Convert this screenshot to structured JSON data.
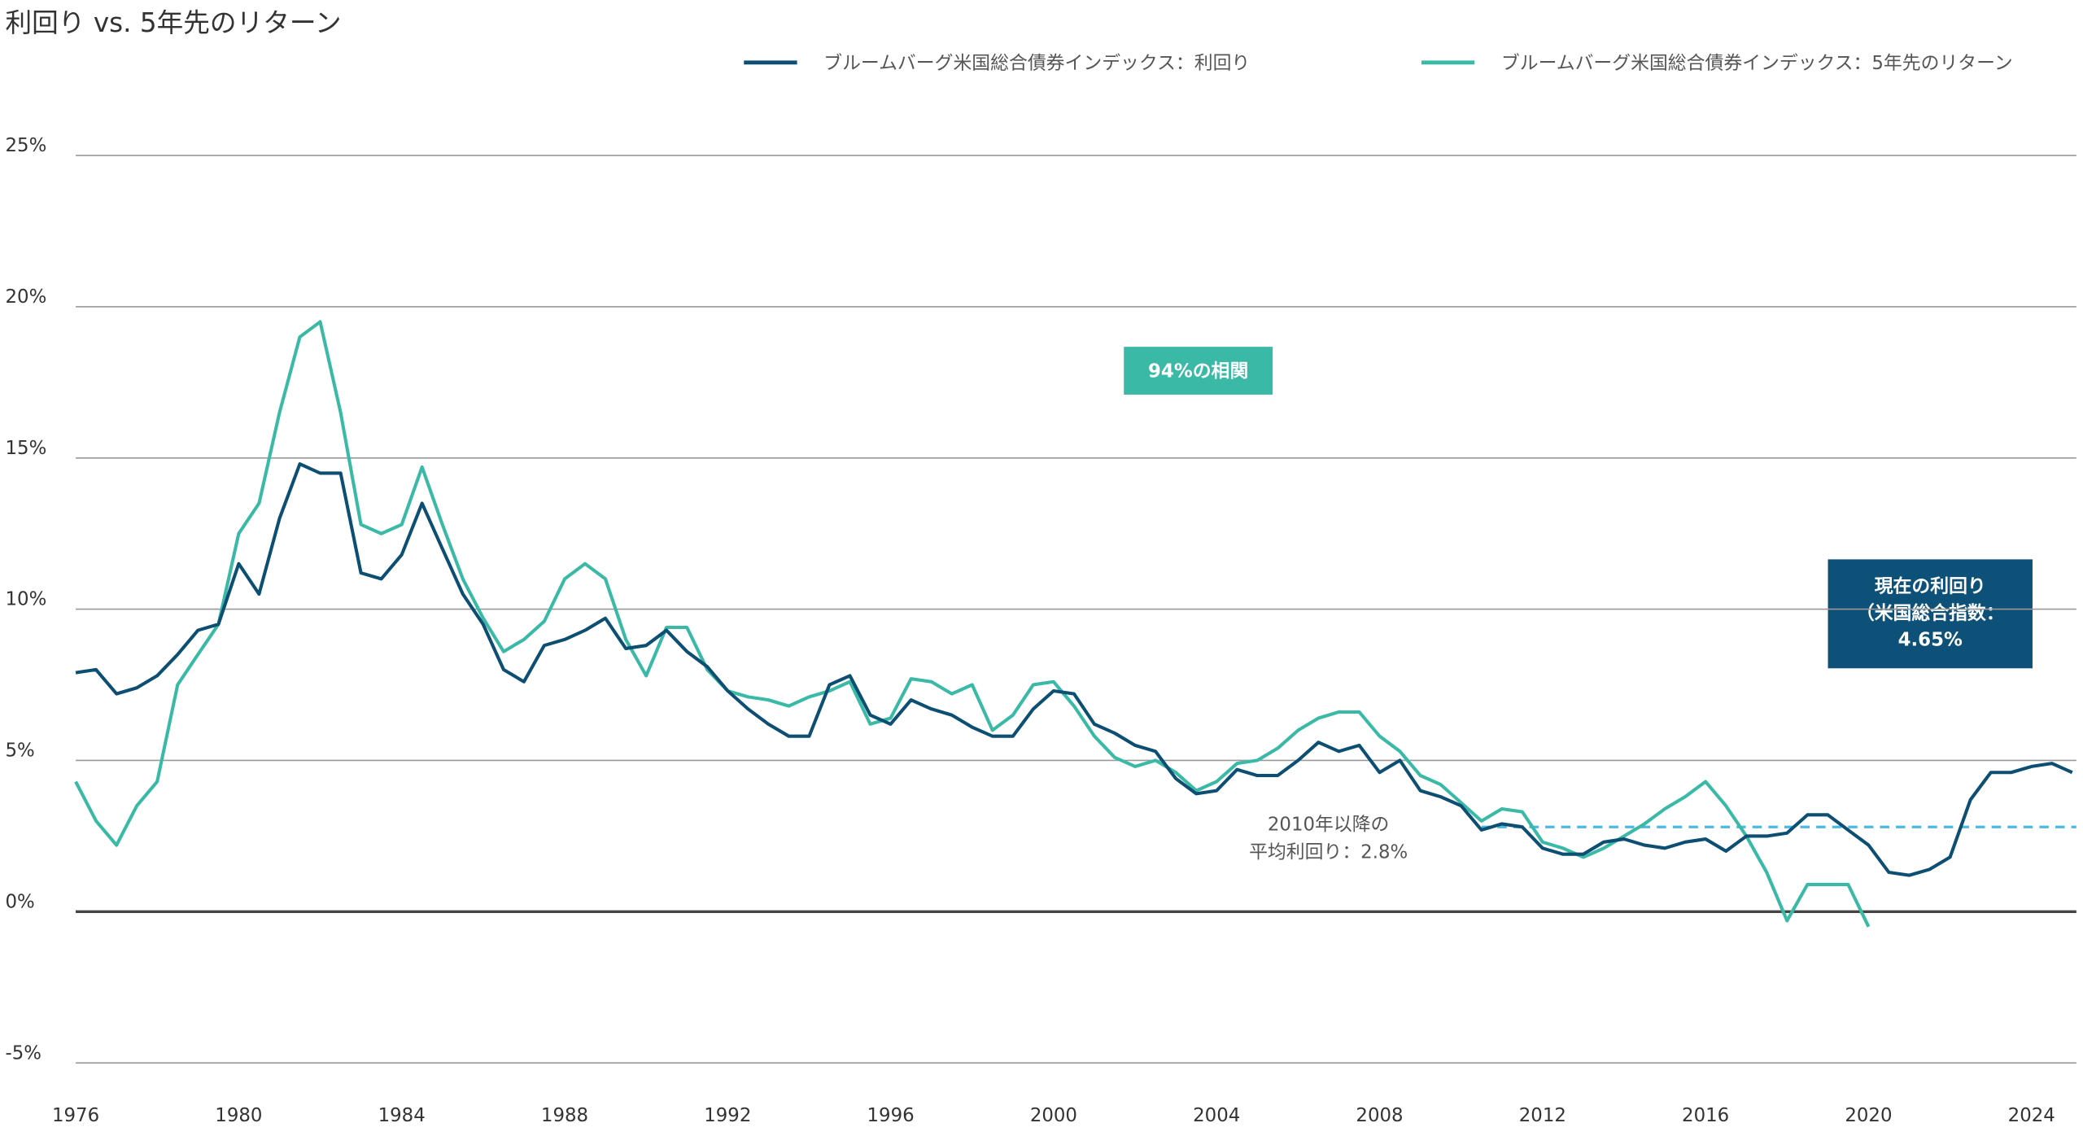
{
  "chart_data": {
    "type": "line",
    "title": "利回り vs. 5年先のリターン",
    "x": [
      1976,
      1976.5,
      1977,
      1977.5,
      1978,
      1978.5,
      1979,
      1979.5,
      1980,
      1980.5,
      1981,
      1981.5,
      1982,
      1982.5,
      1983,
      1983.5,
      1984,
      1984.5,
      1985,
      1985.5,
      1986,
      1986.5,
      1987,
      1987.5,
      1988,
      1988.5,
      1989,
      1989.5,
      1990,
      1990.5,
      1991,
      1991.5,
      1992,
      1992.5,
      1993,
      1993.5,
      1994,
      1994.5,
      1995,
      1995.5,
      1996,
      1996.5,
      1997,
      1997.5,
      1998,
      1998.5,
      1999,
      1999.5,
      2000,
      2000.5,
      2001,
      2001.5,
      2002,
      2002.5,
      2003,
      2003.5,
      2004,
      2004.5,
      2005,
      2005.5,
      2006,
      2006.5,
      2007,
      2007.5,
      2008,
      2008.5,
      2009,
      2009.5,
      2010,
      2010.5,
      2011,
      2011.5,
      2012,
      2012.5,
      2013,
      2013.5,
      2014,
      2014.5,
      2015,
      2015.5,
      2016,
      2016.5,
      2017,
      2017.5,
      2018,
      2018.5,
      2019,
      2019.5,
      2020,
      2020.5,
      2021,
      2021.5,
      2022,
      2022.5,
      2023,
      2023.5,
      2024,
      2024.5,
      2025
    ],
    "series": [
      {
        "name": "ブルームバーグ米国総合債券インデックス：利回り",
        "color": "#0d4f73",
        "values": [
          7.9,
          8.0,
          7.2,
          7.4,
          7.8,
          8.5,
          9.3,
          9.5,
          11.5,
          10.5,
          13.0,
          14.8,
          14.5,
          14.5,
          11.2,
          11.0,
          11.8,
          13.5,
          12.0,
          10.5,
          9.5,
          8.0,
          7.6,
          8.8,
          9.0,
          9.3,
          9.7,
          8.7,
          8.8,
          9.3,
          8.6,
          8.1,
          7.3,
          6.7,
          6.2,
          5.8,
          5.8,
          7.5,
          7.8,
          6.5,
          6.2,
          7.0,
          6.7,
          6.5,
          6.1,
          5.8,
          5.8,
          6.7,
          7.3,
          7.2,
          6.2,
          5.9,
          5.5,
          5.3,
          4.4,
          3.9,
          4.0,
          4.7,
          4.5,
          4.5,
          5.0,
          5.6,
          5.3,
          5.5,
          4.6,
          5.0,
          4.0,
          3.8,
          3.5,
          2.7,
          2.9,
          2.8,
          2.1,
          1.9,
          1.9,
          2.3,
          2.4,
          2.2,
          2.1,
          2.3,
          2.4,
          2.0,
          2.5,
          2.5,
          2.6,
          3.2,
          3.2,
          2.7,
          2.2,
          1.3,
          1.2,
          1.4,
          1.8,
          3.7,
          4.6,
          4.6,
          4.8,
          4.9,
          4.6
        ]
      },
      {
        "name": "ブルームバーグ米国総合債券インデックス：5年先のリターン",
        "color": "#3ab9a7",
        "values": [
          4.3,
          3.0,
          2.2,
          3.5,
          4.3,
          7.5,
          8.5,
          9.5,
          12.5,
          13.5,
          16.5,
          19.0,
          19.5,
          16.5,
          12.8,
          12.5,
          12.8,
          14.7,
          12.8,
          11.0,
          9.7,
          8.6,
          9.0,
          9.6,
          11.0,
          11.5,
          11.0,
          9.0,
          7.8,
          9.4,
          9.4,
          8.0,
          7.3,
          7.1,
          7.0,
          6.8,
          7.1,
          7.3,
          7.6,
          6.2,
          6.4,
          7.7,
          7.6,
          7.2,
          7.5,
          6.0,
          6.5,
          7.5,
          7.6,
          6.8,
          5.8,
          5.1,
          4.8,
          5.0,
          4.6,
          4.0,
          4.3,
          4.9,
          5.0,
          5.4,
          6.0,
          6.4,
          6.6,
          6.6,
          5.8,
          5.3,
          4.5,
          4.2,
          3.6,
          3.0,
          3.4,
          3.3,
          2.3,
          2.1,
          1.8,
          2.1,
          2.5,
          2.9,
          3.4,
          3.8,
          4.3,
          3.5,
          2.5,
          1.3,
          -0.3,
          0.9,
          0.9,
          0.9,
          -0.5,
          null,
          null,
          null,
          null,
          null,
          null,
          null,
          null,
          null,
          null
        ]
      }
    ],
    "xlim": [
      1976,
      2025.1
    ],
    "xticks": [
      1976,
      1980,
      1984,
      1988,
      1992,
      1996,
      2000,
      2004,
      2008,
      2012,
      2016,
      2020,
      2024
    ],
    "ylim": [
      -5,
      25
    ],
    "yticks": [
      {
        "value": -5,
        "label": "-5%"
      },
      {
        "value": 0,
        "label": "0%"
      },
      {
        "value": 5,
        "label": "5%"
      },
      {
        "value": 10,
        "label": "10%"
      },
      {
        "value": 15,
        "label": "15%"
      },
      {
        "value": 20,
        "label": "20%"
      },
      {
        "value": 25,
        "label": "25%"
      }
    ],
    "grid": true,
    "reference_line": {
      "value": 2.8,
      "x_start": 2010.5,
      "color": "#4db8e0"
    },
    "annotations": {
      "correlation": "94%の相関",
      "average": [
        "2010年以降の",
        "平均利回り：2.8%"
      ],
      "current": [
        "現在の利回り",
        "（米国総合指数：",
        "4.65%"
      ]
    }
  }
}
